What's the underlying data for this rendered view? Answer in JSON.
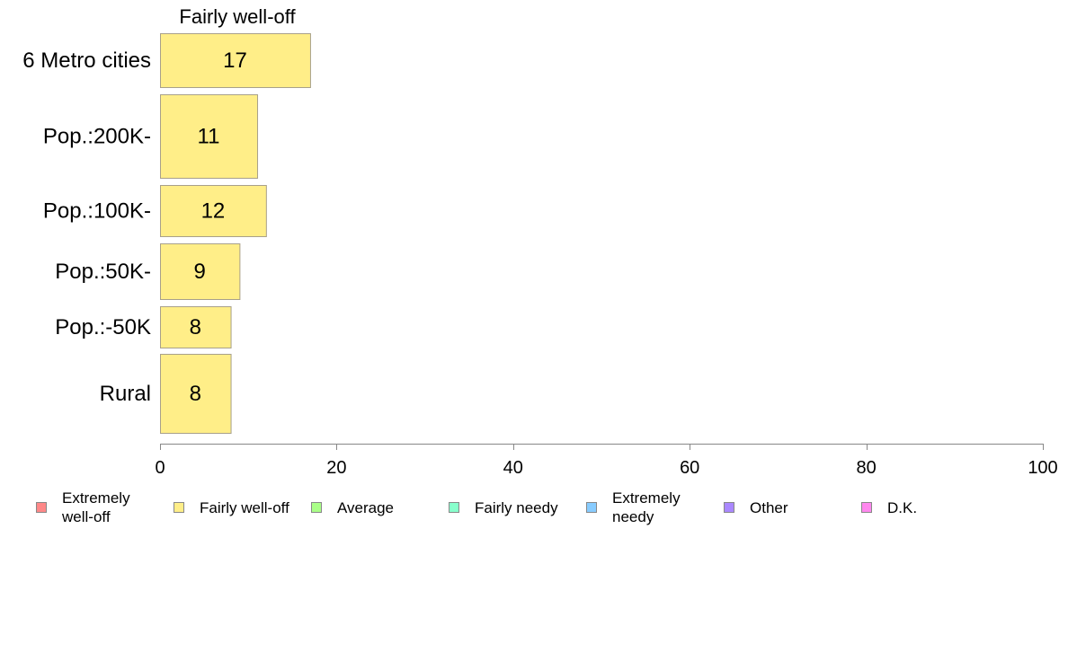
{
  "chart_data": {
    "type": "bar",
    "orientation": "horizontal",
    "series_title": "Fairly well-off",
    "categories": [
      "6 Metro cities",
      "Pop.:200K-",
      "Pop.:100K-",
      "Pop.:50K-",
      "Pop.:-50K",
      "Rural"
    ],
    "series": [
      {
        "name": "Fairly well-off",
        "color": "#ffee88",
        "values": [
          17,
          11,
          12,
          9,
          8,
          8
        ]
      }
    ],
    "value_labels": [
      "17",
      "11",
      "12",
      "9",
      "8",
      "8"
    ],
    "xlim": [
      0,
      100
    ],
    "xticks": [
      0,
      20,
      40,
      60,
      80,
      100
    ],
    "xtick_labels": [
      "0",
      "20",
      "40",
      "60",
      "80",
      "100"
    ],
    "grid": false,
    "legend_placement": "bottom",
    "legend": [
      {
        "label": "Extremely\nwell-off",
        "color": "#ff8888"
      },
      {
        "label": "Fairly well-off",
        "color": "#ffee88"
      },
      {
        "label": "Average",
        "color": "#aaff88"
      },
      {
        "label": "Fairly needy",
        "color": "#88ffcc"
      },
      {
        "label": "Extremely\nneedy",
        "color": "#88ccff"
      },
      {
        "label": "Other",
        "color": "#aa88ff"
      },
      {
        "label": "D.K.",
        "color": "#ff88ee"
      }
    ]
  }
}
